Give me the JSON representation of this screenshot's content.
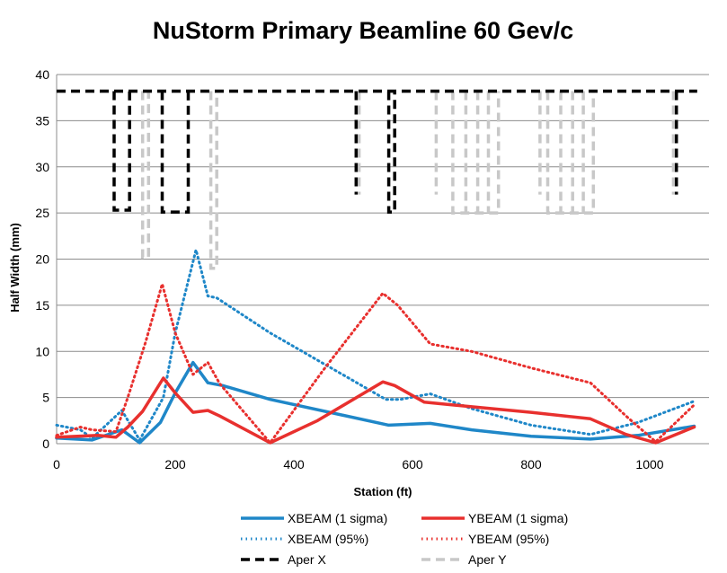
{
  "chart_data": {
    "type": "line",
    "title": "NuStorm Primary Beamline 60 Gev/c",
    "xlabel": "Station (ft)",
    "ylabel": "Half Width (mm)",
    "xlim": [
      0,
      1100
    ],
    "ylim": [
      0,
      40
    ],
    "x_ticks": [
      0,
      200,
      400,
      600,
      800,
      1000
    ],
    "y_ticks": [
      0,
      5,
      10,
      15,
      20,
      25,
      30,
      35,
      40
    ],
    "grid": "horizontal",
    "legend_position": "bottom",
    "series": [
      {
        "name": "XBEAM (1 sigma)",
        "color": "#1f87c8",
        "style": "solid",
        "points": [
          [
            0,
            0.6
          ],
          [
            60,
            0.4
          ],
          [
            110,
            1.5
          ],
          [
            140,
            0.1
          ],
          [
            175,
            2.3
          ],
          [
            200,
            5.5
          ],
          [
            230,
            8.8
          ],
          [
            255,
            6.6
          ],
          [
            280,
            6.3
          ],
          [
            360,
            4.8
          ],
          [
            560,
            2.0
          ],
          [
            630,
            2.2
          ],
          [
            700,
            1.5
          ],
          [
            800,
            0.8
          ],
          [
            900,
            0.5
          ],
          [
            980,
            0.9
          ],
          [
            1075,
            1.9
          ]
        ]
      },
      {
        "name": "XBEAM (95%)",
        "color": "#1f87c8",
        "style": "dotted",
        "points": [
          [
            0,
            2.0
          ],
          [
            40,
            1.5
          ],
          [
            60,
            0.6
          ],
          [
            110,
            3.6
          ],
          [
            140,
            0.4
          ],
          [
            180,
            5.0
          ],
          [
            200,
            12.0
          ],
          [
            235,
            21.0
          ],
          [
            255,
            16.0
          ],
          [
            270,
            15.8
          ],
          [
            360,
            12.0
          ],
          [
            555,
            4.8
          ],
          [
            580,
            4.8
          ],
          [
            630,
            5.4
          ],
          [
            700,
            3.8
          ],
          [
            800,
            2.0
          ],
          [
            900,
            1.0
          ],
          [
            980,
            2.3
          ],
          [
            1075,
            4.6
          ]
        ]
      },
      {
        "name": "YBEAM (1 sigma)",
        "color": "#e8302e",
        "style": "solid",
        "points": [
          [
            0,
            0.7
          ],
          [
            70,
            0.9
          ],
          [
            100,
            0.7
          ],
          [
            120,
            1.8
          ],
          [
            145,
            3.5
          ],
          [
            180,
            7.1
          ],
          [
            200,
            5.5
          ],
          [
            230,
            3.4
          ],
          [
            255,
            3.6
          ],
          [
            275,
            3.0
          ],
          [
            360,
            0.1
          ],
          [
            440,
            2.5
          ],
          [
            550,
            6.7
          ],
          [
            570,
            6.3
          ],
          [
            620,
            4.5
          ],
          [
            700,
            4.0
          ],
          [
            800,
            3.4
          ],
          [
            900,
            2.7
          ],
          [
            960,
            1.0
          ],
          [
            1010,
            0.1
          ],
          [
            1075,
            1.8
          ]
        ]
      },
      {
        "name": "YBEAM (95%)",
        "color": "#e8302e",
        "style": "dotted",
        "points": [
          [
            0,
            0.9
          ],
          [
            40,
            1.8
          ],
          [
            60,
            1.5
          ],
          [
            100,
            1.3
          ],
          [
            120,
            5.0
          ],
          [
            150,
            11.0
          ],
          [
            178,
            17.3
          ],
          [
            200,
            12.0
          ],
          [
            230,
            7.5
          ],
          [
            255,
            8.8
          ],
          [
            275,
            6.5
          ],
          [
            360,
            0.1
          ],
          [
            450,
            8.0
          ],
          [
            550,
            16.3
          ],
          [
            575,
            15.0
          ],
          [
            630,
            10.8
          ],
          [
            700,
            10.0
          ],
          [
            800,
            8.2
          ],
          [
            900,
            6.6
          ],
          [
            960,
            3.0
          ],
          [
            1010,
            0.2
          ],
          [
            1075,
            4.2
          ]
        ]
      },
      {
        "name": "Aper X",
        "color": "#000000",
        "style": "dashed",
        "segments": [
          [
            [
              0,
              38.2
            ],
            [
              1080,
              38.2
            ]
          ],
          [
            [
              97,
              38.2
            ],
            [
              97,
              25.3
            ],
            [
              123,
              25.3
            ],
            [
              123,
              38.2
            ]
          ],
          [
            [
              178,
              38.2
            ],
            [
              178,
              25.1
            ],
            [
              222,
              25.1
            ],
            [
              222,
              38.2
            ]
          ],
          [
            [
              505,
              38.2
            ],
            [
              505,
              27.0
            ]
          ],
          [
            [
              560,
              38.2
            ],
            [
              560,
              25.1
            ],
            [
              570,
              25.1
            ],
            [
              570,
              38.2
            ]
          ],
          [
            [
              1045,
              38.2
            ],
            [
              1045,
              27.0
            ]
          ]
        ]
      },
      {
        "name": "Aper Y",
        "color": "#c8c8c8",
        "style": "dashed",
        "segments": [
          [
            [
              0,
              38.2
            ],
            [
              1080,
              38.2
            ]
          ],
          [
            [
              145,
              38.2
            ],
            [
              145,
              20.2
            ],
            [
              155,
              20.2
            ],
            [
              155,
              38.2
            ]
          ],
          [
            [
              260,
              38.2
            ],
            [
              260,
              19.0
            ],
            [
              270,
              19.0
            ],
            [
              270,
              38.2
            ]
          ],
          [
            [
              510,
              38.2
            ],
            [
              510,
              27.0
            ]
          ],
          [
            [
              640,
              38.2
            ],
            [
              640,
              27.0
            ]
          ],
          [
            [
              668,
              38.2
            ],
            [
              668,
              25.0
            ],
            [
              745,
              25.0
            ],
            [
              745,
              38.2
            ]
          ],
          [
            [
              690,
              38.2
            ],
            [
              690,
              25.0
            ]
          ],
          [
            [
              710,
              38.2
            ],
            [
              710,
              25.0
            ]
          ],
          [
            [
              728,
              38.2
            ],
            [
              728,
              25.0
            ]
          ],
          [
            [
              815,
              38.2
            ],
            [
              815,
              27.0
            ]
          ],
          [
            [
              828,
              38.2
            ],
            [
              828,
              25.0
            ],
            [
              905,
              25.0
            ],
            [
              905,
              38.2
            ]
          ],
          [
            [
              850,
              38.2
            ],
            [
              850,
              25.0
            ]
          ],
          [
            [
              870,
              38.2
            ],
            [
              870,
              25.0
            ]
          ],
          [
            [
              888,
              38.2
            ],
            [
              888,
              25.0
            ]
          ],
          [
            [
              1040,
              38.2
            ],
            [
              1040,
              27.0
            ]
          ]
        ]
      }
    ]
  }
}
